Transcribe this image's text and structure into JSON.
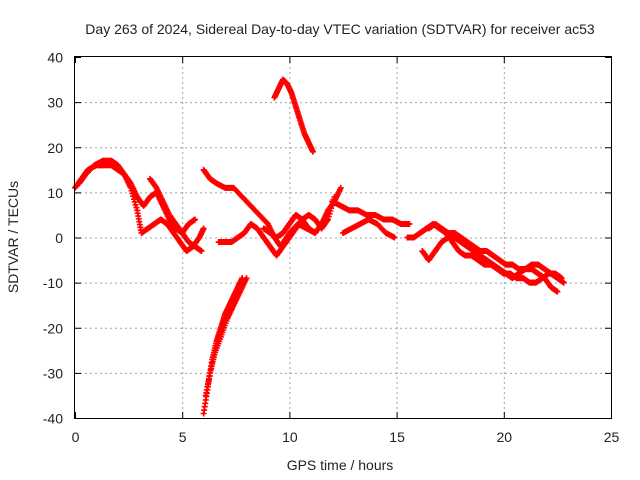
{
  "chart_data": {
    "type": "scatter",
    "title": "Day 263 of 2024, Sidereal Day-to-day VTEC variation (SDTVAR) for receiver ac53",
    "xlabel": "GPS time / hours",
    "ylabel": "SDTVAR / TECUs",
    "xlim": [
      0,
      25
    ],
    "ylim": [
      -40,
      40
    ],
    "xticks": [
      "0",
      "5",
      "10",
      "15",
      "20",
      "25"
    ],
    "yticks": [
      "40",
      "30",
      "20",
      "10",
      "0",
      "-10",
      "-20",
      "-30",
      "-40"
    ],
    "grid": true,
    "marker": "plus",
    "color": "#ff0000",
    "series": [
      {
        "name": "s1",
        "x": [
          0.0,
          0.3,
          0.6,
          1.0,
          1.3,
          1.7,
          2.0,
          2.3,
          2.6,
          2.9,
          3.2,
          3.5,
          3.8,
          4.1,
          4.4,
          4.7,
          5.0,
          5.3,
          5.6
        ],
        "y": [
          11,
          13,
          15,
          16,
          16,
          16,
          15,
          14,
          12,
          9,
          7,
          9,
          10,
          7,
          4,
          2,
          1,
          3,
          4
        ]
      },
      {
        "name": "s2",
        "x": [
          0.2,
          0.5,
          0.9,
          1.3,
          1.7,
          2.0,
          2.3,
          2.6,
          2.9,
          3.1,
          3.4,
          3.7,
          4.0,
          4.3,
          4.6,
          4.9,
          5.2,
          5.5,
          5.8,
          6.0
        ],
        "y": [
          12,
          14,
          16,
          17,
          17,
          16,
          14,
          11,
          6,
          1,
          2,
          3,
          4,
          3,
          1,
          -1,
          -3,
          -2,
          0,
          2
        ]
      },
      {
        "name": "s3",
        "x": [
          3.5,
          3.8,
          4.1,
          4.4,
          4.7,
          5.0,
          5.3,
          5.6,
          5.9
        ],
        "y": [
          13,
          11,
          8,
          5,
          3,
          1,
          -1,
          -2,
          -3
        ]
      },
      {
        "name": "s4",
        "x": [
          6.0,
          6.3,
          6.6,
          7.0,
          7.4,
          7.8,
          8.2,
          8.6,
          9.0,
          9.3,
          9.6,
          10.0,
          10.4,
          10.8,
          11.2
        ],
        "y": [
          15,
          13,
          12,
          11,
          11,
          9,
          7,
          5,
          3,
          0,
          -2,
          1,
          3,
          2,
          1
        ]
      },
      {
        "name": "s5",
        "x": [
          6.7,
          7.0,
          7.3,
          7.6,
          7.9,
          8.2,
          8.5,
          8.8,
          9.1,
          9.4,
          9.7,
          10.0,
          10.3,
          10.6,
          10.9,
          11.2,
          11.5,
          11.8,
          12.1
        ],
        "y": [
          -1,
          -1,
          -1,
          0,
          1,
          3,
          2,
          0,
          -2,
          -4,
          -2,
          0,
          2,
          4,
          5,
          4,
          2,
          4,
          9
        ]
      },
      {
        "name": "s6",
        "x": [
          8.8,
          9.1,
          9.4,
          9.7,
          10.0,
          10.3,
          10.6,
          10.9,
          11.2,
          11.5,
          11.8,
          12.1,
          12.4
        ],
        "y": [
          2,
          1,
          0,
          1,
          3,
          5,
          4,
          2,
          1,
          3,
          6,
          8,
          11
        ]
      },
      {
        "name": "s7",
        "x": [
          6.1,
          6.3,
          6.5,
          6.8,
          7.1,
          7.4,
          7.7,
          8.0
        ],
        "y": [
          -35,
          -30,
          -26,
          -22,
          -18,
          -15,
          -12,
          -9
        ]
      },
      {
        "name": "s8",
        "x": [
          6.0,
          6.2,
          6.4,
          6.6,
          6.8,
          7.0,
          7.2,
          7.4,
          7.6,
          7.8
        ],
        "y": [
          -39,
          -33,
          -27,
          -23,
          -20,
          -17,
          -15,
          -13,
          -11,
          -9
        ]
      },
      {
        "name": "s9",
        "x": [
          9.3,
          9.5,
          9.7,
          9.9,
          10.1,
          10.3,
          10.5,
          10.7,
          10.9,
          11.1
        ],
        "y": [
          31,
          33,
          35,
          34,
          32,
          29,
          26,
          23,
          21,
          19
        ]
      },
      {
        "name": "s10",
        "x": [
          12.0,
          12.4,
          12.8,
          13.2,
          13.6,
          14.0,
          14.4,
          14.8,
          15.2,
          15.6
        ],
        "y": [
          8,
          7,
          6,
          6,
          5,
          5,
          4,
          4,
          3,
          3
        ]
      },
      {
        "name": "s11",
        "x": [
          12.5,
          12.9,
          13.3,
          13.7,
          14.1,
          14.5,
          14.9
        ],
        "y": [
          1,
          2,
          3,
          4,
          3,
          1,
          0
        ]
      },
      {
        "name": "s12",
        "x": [
          15.5,
          15.8,
          16.1,
          16.4,
          16.7,
          17.0,
          17.3,
          17.6,
          17.9,
          18.2,
          18.5,
          18.8,
          19.1,
          19.4,
          19.7,
          20.0,
          20.3,
          20.6,
          20.9,
          21.2,
          21.5,
          21.8,
          22.1,
          22.4,
          22.7
        ],
        "y": [
          0,
          0,
          1,
          2,
          3,
          2,
          1,
          -1,
          -3,
          -4,
          -4,
          -5,
          -6,
          -6,
          -7,
          -8,
          -8,
          -9,
          -9,
          -10,
          -10,
          -9,
          -8,
          -8,
          -9
        ]
      },
      {
        "name": "s13",
        "x": [
          16.2,
          16.5,
          16.8,
          17.1,
          17.4,
          17.7,
          18.0,
          18.3,
          18.6,
          18.9,
          19.2,
          19.5,
          19.8,
          20.1,
          20.4,
          20.7,
          21.0,
          21.3,
          21.6,
          21.9,
          22.2,
          22.5
        ],
        "y": [
          -3,
          -5,
          -3,
          -1,
          0,
          0,
          -1,
          -2,
          -3,
          -4,
          -5,
          -6,
          -7,
          -8,
          -9,
          -8,
          -7,
          -7,
          -8,
          -9,
          -11,
          -12
        ]
      },
      {
        "name": "s14",
        "x": [
          16.5,
          16.8,
          17.1,
          17.4,
          17.7,
          18.0,
          18.3,
          18.6,
          18.9,
          19.2,
          19.5,
          19.8,
          20.1,
          20.4,
          20.7,
          21.0,
          21.3,
          21.6,
          21.9,
          22.2,
          22.5,
          22.8
        ],
        "y": [
          2,
          3,
          2,
          1,
          1,
          0,
          -1,
          -2,
          -3,
          -3,
          -4,
          -5,
          -6,
          -6,
          -7,
          -7,
          -6,
          -6,
          -7,
          -8,
          -9,
          -10
        ]
      }
    ]
  }
}
